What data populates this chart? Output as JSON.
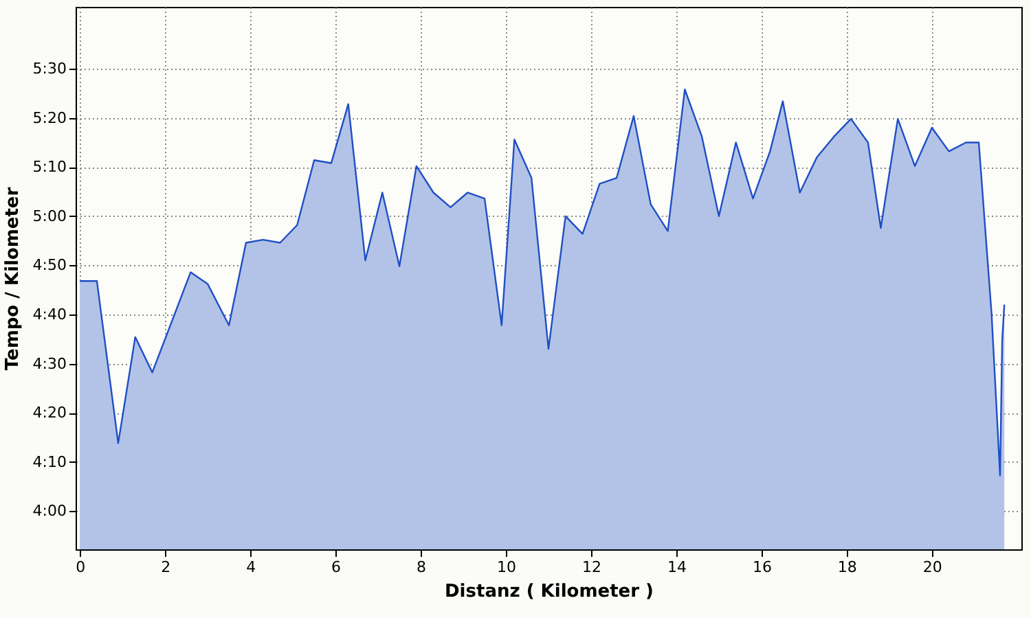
{
  "chart_data": {
    "type": "area",
    "xlabel": "Distanz ( Kilometer )",
    "ylabel": "Tempo / Kilometer",
    "x": [
      0,
      0.4,
      0.9,
      1.3,
      1.7,
      2.6,
      3.0,
      3.5,
      3.9,
      4.3,
      4.7,
      5.1,
      5.5,
      5.9,
      6.3,
      6.7,
      7.1,
      7.5,
      7.9,
      8.3,
      8.7,
      9.1,
      9.5,
      9.9,
      10.2,
      10.6,
      11.0,
      11.4,
      11.8,
      12.2,
      12.6,
      13.0,
      13.4,
      13.8,
      14.2,
      14.6,
      15.0,
      15.4,
      15.8,
      16.2,
      16.5,
      16.9,
      17.3,
      17.7,
      18.1,
      18.5,
      18.8,
      19.2,
      19.6,
      20.0,
      20.4,
      20.8,
      21.1,
      21.4,
      21.6,
      21.65,
      21.7
    ],
    "series": [
      {
        "color": "#b3c3e8",
        "values": [
          4.78,
          4.78,
          4.23,
          4.59,
          4.47,
          4.81,
          4.77,
          4.63,
          4.91,
          4.92,
          4.91,
          4.97,
          5.19,
          5.18,
          5.38,
          4.85,
          5.08,
          4.83,
          5.17,
          5.08,
          5.03,
          5.08,
          5.06,
          4.63,
          5.26,
          5.13,
          4.55,
          5.0,
          4.94,
          5.11,
          5.13,
          5.34,
          5.04,
          4.95,
          5.43,
          5.27,
          5.0,
          5.25,
          5.06,
          5.22,
          5.39,
          5.08,
          5.2,
          5.27,
          5.33,
          5.25,
          4.96,
          5.33,
          5.17,
          5.3,
          5.22,
          5.25,
          5.25,
          4.67,
          4.12,
          4.58,
          4.7
        ]
      }
    ],
    "xlim": [
      -0.1,
      22.1
    ],
    "ylim": [
      3.87,
      5.71
    ],
    "xticks": [
      0,
      2,
      4,
      6,
      8,
      10,
      12,
      14,
      16,
      18,
      20
    ],
    "yticks": [
      {
        "value": 4.0,
        "label": "4:00"
      },
      {
        "value": 4.1667,
        "label": "4:10"
      },
      {
        "value": 4.3333,
        "label": "4:20"
      },
      {
        "value": 4.5,
        "label": "4:30"
      },
      {
        "value": 4.6667,
        "label": "4:40"
      },
      {
        "value": 4.8333,
        "label": "4:50"
      },
      {
        "value": 5.0,
        "label": "5:00"
      },
      {
        "value": 5.1667,
        "label": "5:10"
      },
      {
        "value": 5.3333,
        "label": "5:20"
      },
      {
        "value": 5.5,
        "label": "5:30"
      }
    ],
    "grid": true
  }
}
